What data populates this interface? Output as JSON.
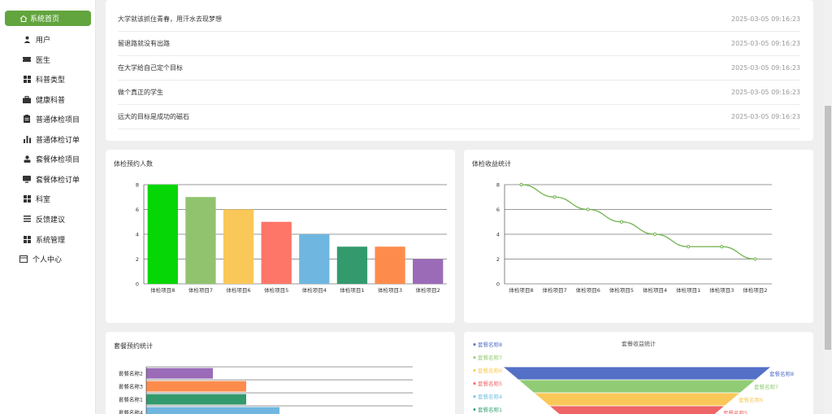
{
  "sidebar": {
    "active": {
      "label": "系统首页",
      "icon": "home-icon"
    },
    "items": [
      {
        "label": "用户",
        "icon": "user-icon"
      },
      {
        "label": "医生",
        "icon": "ticket-icon"
      },
      {
        "label": "科普类型",
        "icon": "grid-icon"
      },
      {
        "label": "健康科普",
        "icon": "briefcase-icon"
      },
      {
        "label": "普通体检项目",
        "icon": "clipboard-icon"
      },
      {
        "label": "普通体检订单",
        "icon": "bar-chart-icon"
      },
      {
        "label": "套餐体检项目",
        "icon": "person-icon"
      },
      {
        "label": "套餐体检订单",
        "icon": "monitor-icon"
      },
      {
        "label": "科室",
        "icon": "grid-icon"
      },
      {
        "label": "反馈建议",
        "icon": "list-icon"
      },
      {
        "label": "系统管理",
        "icon": "grid-icon"
      }
    ],
    "personal": {
      "label": "个人中心",
      "icon": "card-icon"
    }
  },
  "messages": [
    {
      "text": "大学就该抓住青春，用汗水去现梦想",
      "time": "2025-03-05 09:16:23"
    },
    {
      "text": "留退路就没有出路",
      "time": "2025-03-05 09:16:23"
    },
    {
      "text": "在大学给自己定个目标",
      "time": "2025-03-05 09:16:23"
    },
    {
      "text": "做个真正的学生",
      "time": "2025-03-05 09:16:23"
    },
    {
      "text": "远大的目标是成功的磁石",
      "time": "2025-03-05 09:16:23"
    }
  ],
  "chart_data": [
    {
      "type": "bar",
      "title": "体检预约人数",
      "categories": [
        "体检项目8",
        "体检项目7",
        "体检项目6",
        "体检项目5",
        "体检项目4",
        "体检项目1",
        "体检项目3",
        "体检项目2"
      ],
      "values": [
        8,
        7,
        6,
        5,
        4,
        3,
        3,
        2
      ],
      "colors": [
        "#06d606",
        "#91c36f",
        "#fac858",
        "#fe7668",
        "#6fb7e0",
        "#339a6d",
        "#fd8c4c",
        "#9b6bb8"
      ],
      "ylim": [
        0,
        8
      ],
      "yticks": [
        "0",
        "2",
        "4",
        "6",
        "8"
      ],
      "grid": true
    },
    {
      "type": "line",
      "title": "体检收益统计",
      "categories": [
        "体检项目8",
        "体检项目7",
        "体检项目6",
        "体检项目5",
        "体检项目4",
        "体检项目1",
        "体检项目3",
        "体检项目2"
      ],
      "values": [
        8,
        7,
        6,
        5,
        4,
        3,
        3,
        2
      ],
      "color": "#71b34e",
      "ylim": [
        0,
        8
      ],
      "yticks": [
        "0",
        "2",
        "4",
        "6",
        "8"
      ],
      "grid": true
    },
    {
      "type": "bar",
      "orientation": "horizontal",
      "title": "套餐预约统计",
      "categories": [
        "套餐名称2",
        "套餐名称3",
        "套餐名称1",
        "套餐名称4"
      ],
      "values": [
        2,
        3,
        3,
        4
      ],
      "colors": [
        "#9b6bb8",
        "#fd8c4c",
        "#339a6d",
        "#6fb7e0"
      ],
      "xlim": [
        0,
        8
      ],
      "grid": true
    },
    {
      "type": "funnel",
      "title": "套餐收益统计",
      "legend": [
        "套餐名称8",
        "套餐名称7",
        "套餐名称6",
        "套餐名称5",
        "套餐名称4",
        "套餐名称1"
      ],
      "legend_colors": [
        "#5470c6",
        "#91cc75",
        "#fac858",
        "#ee6666",
        "#73c0de",
        "#3ba272"
      ],
      "stages": [
        "套餐名称8",
        "套餐名称7",
        "套餐名称6",
        "套餐名称5"
      ],
      "stage_colors": [
        "#5470c6",
        "#91cc75",
        "#fac858",
        "#ee6666"
      ],
      "legend_placement": "left"
    }
  ]
}
